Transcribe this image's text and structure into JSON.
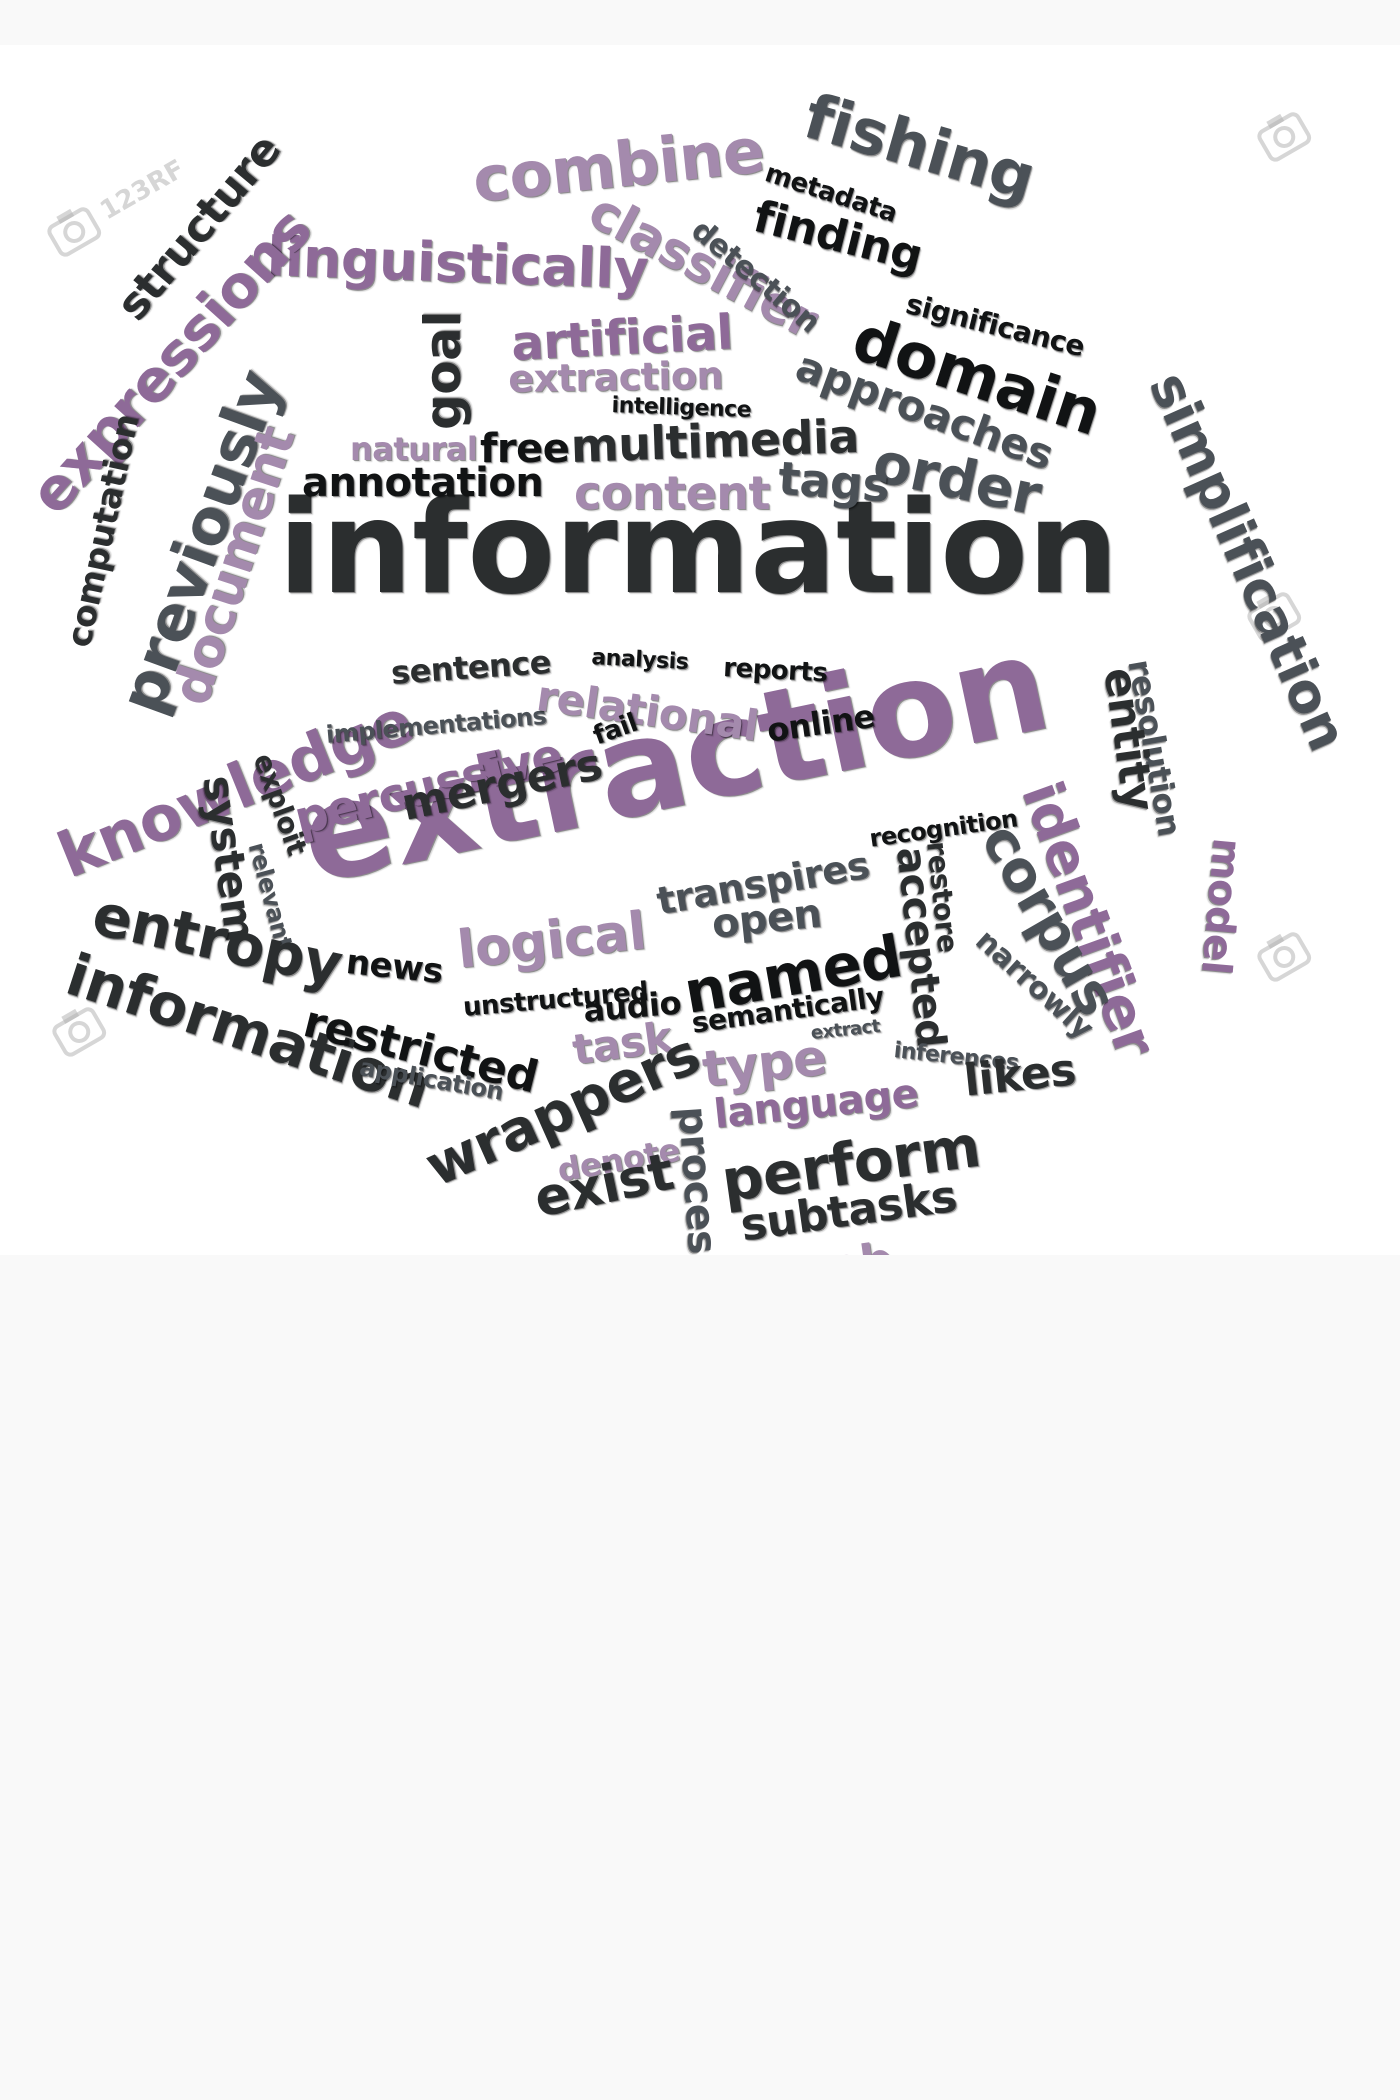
{
  "cloud": {
    "colors": {
      "dark": "#2b2e2f",
      "gray": "#4b5157",
      "purple": "#8e6a98",
      "light_purple": "#a48aad",
      "black": "#111314"
    },
    "watermark_text": "123RF",
    "words": [
      "information",
      "extraction",
      "combine",
      "fishing",
      "structure",
      "linguistically",
      "expressions",
      "classifier",
      "metadata",
      "finding",
      "detection",
      "significance",
      "domain",
      "artificial",
      "extraction",
      "goal",
      "intelligence",
      "approaches",
      "simplification",
      "previously",
      "computation",
      "document",
      "natural",
      "free",
      "multimedia",
      "order",
      "annotation",
      "content",
      "tags",
      "knowledge",
      "sentence",
      "implementations",
      "percussive",
      "relational",
      "analysis",
      "reports",
      "online",
      "resolution",
      "entity",
      "exploit",
      "system",
      "relevant",
      "mergers",
      "fail",
      "identifier",
      "recognition",
      "transpires",
      "corpus",
      "restore",
      "accepted",
      "model",
      "entropy",
      "information",
      "news",
      "logical",
      "open",
      "unstructured",
      "audio",
      "named",
      "narrowly",
      "restricted",
      "application",
      "task",
      "semantically",
      "extract",
      "type",
      "inferences",
      "likes",
      "wrappers",
      "denote",
      "language",
      "process",
      "perform",
      "exist",
      "subtasks",
      "web"
    ]
  }
}
